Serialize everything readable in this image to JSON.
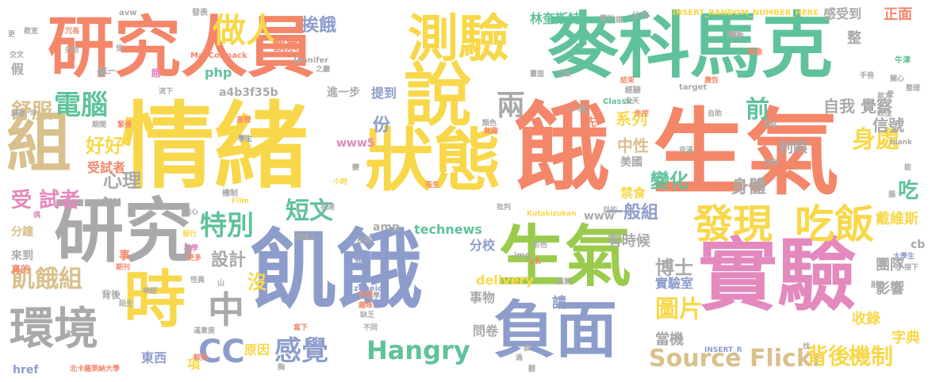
{
  "colors": {
    "coral": "#F4866A",
    "green": "#5FC29A",
    "yellow": "#F8D84A",
    "tan": "#D9C08C",
    "blue": "#8D9DCB",
    "pink": "#E389BD",
    "lime": "#9ACB4C",
    "gray": "#A9A9A9"
  },
  "words": [
    {
      "text": "情緒",
      "color": "yellow"
    },
    {
      "text": "飢餓",
      "color": "blue"
    },
    {
      "text": "麥科馬克",
      "color": "green"
    },
    {
      "text": "生氣",
      "color": "coral"
    },
    {
      "text": "研究人員",
      "color": "coral"
    },
    {
      "text": "實驗",
      "color": "pink"
    },
    {
      "text": "說",
      "color": "yellow"
    },
    {
      "text": "狀態",
      "color": "yellow"
    },
    {
      "text": "餓",
      "color": "coral"
    },
    {
      "text": "測驗",
      "color": "yellow"
    },
    {
      "text": "研究",
      "color": "gray"
    },
    {
      "text": "生氣",
      "color": "lime"
    },
    {
      "text": "負面",
      "color": "blue"
    },
    {
      "text": "組",
      "color": "tan"
    },
    {
      "text": "時",
      "color": "yellow"
    },
    {
      "text": "環境",
      "color": "gray"
    },
    {
      "text": "發現",
      "color": "yellow"
    },
    {
      "text": "吃飯",
      "color": "yellow"
    },
    {
      "text": "Hangry",
      "color": "green"
    },
    {
      "text": "感覺",
      "color": "blue"
    },
    {
      "text": "CC",
      "color": "blue"
    },
    {
      "text": "中",
      "color": "gray"
    },
    {
      "text": "Source Flickr",
      "color": "tan"
    },
    {
      "text": "背後",
      "color": "yellow"
    },
    {
      "text": "機制",
      "color": "yellow"
    },
    {
      "text": "做人",
      "color": "yellow"
    },
    {
      "text": "電腦",
      "color": "green"
    },
    {
      "text": "兩",
      "color": "gray"
    },
    {
      "text": "前",
      "color": "green"
    },
    {
      "text": "身處",
      "color": "yellow"
    },
    {
      "text": "特別",
      "color": "green"
    },
    {
      "text": "短文",
      "color": "green"
    },
    {
      "text": "圖片",
      "color": "yellow"
    },
    {
      "text": "飢餓組",
      "color": "tan"
    },
    {
      "text": "舒服",
      "color": "tan"
    },
    {
      "text": "好好",
      "color": "yellow"
    },
    {
      "text": "心理",
      "color": "gray"
    },
    {
      "text": "受 試者",
      "color": "pink"
    },
    {
      "text": "變化",
      "color": "green"
    },
    {
      "text": "一般組",
      "color": "blue"
    },
    {
      "text": "博士",
      "color": "gray"
    },
    {
      "text": "挨餓",
      "color": "blue"
    },
    {
      "text": "份",
      "color": "blue"
    },
    {
      "text": "系列",
      "color": "yellow"
    },
    {
      "text": "中性",
      "color": "tan"
    },
    {
      "text": "身體",
      "color": "gray"
    },
    {
      "text": "吃",
      "color": "green"
    },
    {
      "text": "自我 覺察",
      "color": "gray"
    },
    {
      "text": "信號",
      "color": "gray"
    },
    {
      "text": "刺眼",
      "color": "gray"
    },
    {
      "text": "戴維斯",
      "color": "yellow"
    },
    {
      "text": "團隊",
      "color": "gray"
    },
    {
      "text": "影響",
      "color": "gray"
    },
    {
      "text": "收錄",
      "color": "yellow"
    },
    {
      "text": "字典",
      "color": "yellow"
    },
    {
      "text": "實驗室",
      "color": "blue"
    },
    {
      "text": "當機",
      "color": "gray"
    },
    {
      "text": "有時候",
      "color": "gray"
    },
    {
      "text": "設計",
      "color": "gray"
    },
    {
      "text": "沒",
      "color": "yellow"
    },
    {
      "text": "寫",
      "color": "blue"
    },
    {
      "text": "分校",
      "color": "blue"
    },
    {
      "text": "technews",
      "color": "green"
    },
    {
      "text": "delivery",
      "color": "yellow"
    },
    {
      "text": "事物",
      "color": "gray"
    },
    {
      "text": "問卷",
      "color": "gray"
    },
    {
      "text": "請",
      "color": "blue"
    },
    {
      "text": "東西",
      "color": "blue"
    },
    {
      "text": "原因",
      "color": "yellow"
    },
    {
      "text": "項",
      "color": "yellow"
    },
    {
      "text": "林奎斯特",
      "color": "green"
    },
    {
      "text": "感受到",
      "color": "gray"
    },
    {
      "text": "正面",
      "color": "coral"
    },
    {
      "text": "整",
      "color": "gray"
    },
    {
      "text": "觀察",
      "color": "coral"
    },
    {
      "text": "提到",
      "color": "blue"
    },
    {
      "text": "進一步",
      "color": "gray"
    },
    {
      "text": "php",
      "color": "green"
    },
    {
      "text": "a4b3f35b",
      "color": "gray"
    },
    {
      "text": "www5",
      "color": "pink"
    },
    {
      "text": "www",
      "color": "gray"
    },
    {
      "text": "amp",
      "color": "gray"
    },
    {
      "text": "tw",
      "color": "gray"
    },
    {
      "text": "受試者",
      "color": "coral"
    },
    {
      "text": "來到",
      "color": "gray"
    },
    {
      "text": "真的",
      "color": "coral"
    },
    {
      "text": "分鐘",
      "color": "tan"
    },
    {
      "text": "事",
      "color": "coral"
    },
    {
      "text": "背後",
      "color": "gray"
    },
    {
      "text": "美國",
      "color": "gray"
    },
    {
      "text": "禁食",
      "color": "yellow"
    },
    {
      "text": "一半",
      "color": "gray"
    },
    {
      "text": "先",
      "color": "coral"
    },
    {
      "text": "cb",
      "color": "gray"
    },
    {
      "text": "href",
      "color": "blue"
    },
    {
      "text": "假",
      "color": "gray"
    },
    {
      "text": "第一",
      "color": "gray"
    },
    {
      "text": "餓",
      "color": "pink"
    },
    {
      "text": "公布",
      "color": "gray"
    },
    {
      "text": "發表",
      "color": "gray"
    },
    {
      "text": "avw",
      "color": "gray"
    },
    {
      "text": "INSERT_RANDOM_NUMBER_HERE",
      "color": "yellow"
    },
    {
      "text": "MacCormack",
      "color": "coral"
    },
    {
      "text": "Jennifer",
      "color": "gray"
    },
    {
      "text": "target",
      "color": "gray"
    },
    {
      "text": "Classic",
      "color": "green"
    },
    {
      "text": "blank",
      "color": "gray"
    },
    {
      "text": "Film",
      "color": "yellow"
    },
    {
      "text": "Kutakizukan",
      "color": "yellow"
    },
    {
      "text": "img",
      "color": "gray"
    },
    {
      "text": "ck",
      "color": "coral"
    },
    {
      "text": "zoneid",
      "color": "blue"
    },
    {
      "text": "INSERT_R",
      "color": "blue"
    },
    {
      "text": "北卡羅萊納大學",
      "color": "coral"
    },
    {
      "text": "經驗",
      "color": "gray"
    },
    {
      "text": "牛津",
      "color": "green"
    },
    {
      "text": "現象",
      "color": "coral"
    },
    {
      "text": "學生",
      "color": "blue"
    },
    {
      "text": "大學生",
      "color": "blue"
    },
    {
      "text": "心理學",
      "color": "gray"
    },
    {
      "text": "機制",
      "color": "gray"
    },
    {
      "text": "花生",
      "color": "coral"
    },
    {
      "text": "小時",
      "color": "yellow"
    },
    {
      "text": "發行",
      "color": "yellow"
    },
    {
      "text": "科學",
      "color": "pink"
    },
    {
      "text": "期刊",
      "color": "coral"
    },
    {
      "text": "更多",
      "color": "coral"
    },
    {
      "text": "神經",
      "color": "gray"
    },
    {
      "text": "陌生",
      "color": "gray"
    },
    {
      "text": "招募",
      "color": "gray"
    },
    {
      "text": "彩色",
      "color": "gray"
    },
    {
      "text": "無關",
      "color": "gray"
    },
    {
      "text": "結束",
      "color": "coral"
    },
    {
      "text": "廣告",
      "color": "coral"
    },
    {
      "text": "失控",
      "color": "coral"
    },
    {
      "text": "全天",
      "color": "gray"
    },
    {
      "text": "自助",
      "color": "gray"
    },
    {
      "text": "教室",
      "color": "gray"
    },
    {
      "text": "充滿",
      "color": "gray"
    },
    {
      "text": "交文",
      "color": "gray"
    },
    {
      "text": "冗長",
      "color": "coral"
    },
    {
      "text": "調查",
      "color": "gray"
    },
    {
      "text": "第一",
      "color": "gray"
    },
    {
      "text": "之廳",
      "color": "gray"
    },
    {
      "text": "直視",
      "color": "coral"
    },
    {
      "text": "顏色",
      "color": "gray"
    },
    {
      "text": "無趣",
      "color": "coral"
    },
    {
      "text": "受試",
      "color": "gray"
    },
    {
      "text": "偶",
      "color": "pink"
    },
    {
      "text": "耐心",
      "color": "gray"
    },
    {
      "text": "接下",
      "color": "gray"
    },
    {
      "text": "手冊",
      "color": "gray"
    },
    {
      "text": "關心",
      "color": "gray"
    },
    {
      "text": "愛",
      "color": "gray"
    },
    {
      "text": "較佳",
      "color": "gray"
    },
    {
      "text": "做到",
      "color": "gray"
    },
    {
      "text": "能",
      "color": "gray"
    },
    {
      "text": "信心",
      "color": "gray"
    },
    {
      "text": "抵達",
      "color": "gray"
    },
    {
      "text": "寫下",
      "color": "coral"
    },
    {
      "text": "滿意度",
      "color": "gray"
    },
    {
      "text": "較熱",
      "color": "coral"
    },
    {
      "text": "怪異",
      "color": "gray"
    },
    {
      "text": "山",
      "color": "gray"
    },
    {
      "text": "不同",
      "color": "gray"
    },
    {
      "text": "缺乏",
      "color": "gray"
    },
    {
      "text": "跟讀人",
      "color": "gray"
    },
    {
      "text": "目的",
      "color": "gray"
    },
    {
      "text": "批判",
      "color": "gray"
    },
    {
      "text": "女孩",
      "color": "coral"
    },
    {
      "text": "趣味",
      "color": "coral"
    },
    {
      "text": "貌",
      "color": "gray"
    },
    {
      "text": "次",
      "color": "gray"
    },
    {
      "text": "年",
      "color": "gray"
    },
    {
      "text": "胸",
      "color": "gray"
    },
    {
      "text": "更",
      "color": "gray"
    },
    {
      "text": "能力",
      "color": "gray"
    },
    {
      "text": "導致",
      "color": "gray"
    },
    {
      "text": "先前",
      "color": "gray"
    },
    {
      "text": "期間",
      "color": "gray"
    },
    {
      "text": "腦",
      "color": "gray"
    },
    {
      "text": "趨",
      "color": "gray"
    },
    {
      "text": "白眼",
      "color": "gray"
    },
    {
      "text": "畫面",
      "color": "gray"
    },
    {
      "text": "變",
      "color": "gray"
    },
    {
      "text": "緊張",
      "color": "coral"
    },
    {
      "text": "過",
      "color": "gray"
    },
    {
      "text": "翻",
      "color": "gray"
    },
    {
      "text": "找",
      "color": "gray"
    },
    {
      "text": "整理",
      "color": "gray"
    },
    {
      "text": "導完",
      "color": "gray"
    },
    {
      "text": "趨以",
      "color": "gray"
    },
    {
      "text": "受",
      "color": "gray"
    },
    {
      "text": "張",
      "color": "coral"
    },
    {
      "text": "流下",
      "color": "gray"
    }
  ]
}
